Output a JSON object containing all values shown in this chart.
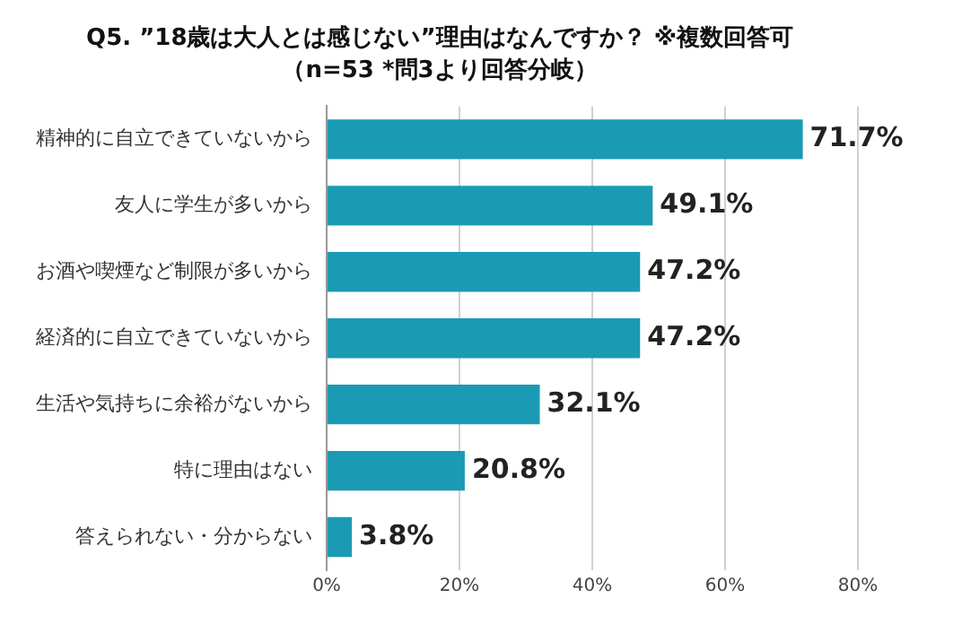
{
  "chart_data": {
    "type": "bar",
    "orientation": "horizontal",
    "title": "Q5. ”18歳は大人とは感じない”理由はなんですか？ ※複数回答可",
    "subtitle": "（n=53 *問3より回答分岐）",
    "categories": [
      "精神的に自立できていないから",
      "友人に学生が多いから",
      "お酒や喫煙など制限が多いから",
      "経済的に自立できていないから",
      "生活や気持ちに余裕がないから",
      "特に理由はない",
      "答えられない・分からない"
    ],
    "values": [
      71.7,
      49.1,
      47.2,
      47.2,
      32.1,
      20.8,
      3.8
    ],
    "value_labels": [
      "71.7%",
      "49.1%",
      "47.2%",
      "47.2%",
      "32.1%",
      "20.8%",
      "3.8%"
    ],
    "color": "#1a9bb3",
    "xlim": [
      0,
      80
    ],
    "xticks": [
      {
        "value": 0,
        "label": "0%"
      },
      {
        "value": 20,
        "label": "20%"
      },
      {
        "value": 40,
        "label": "40%"
      },
      {
        "value": 60,
        "label": "60%"
      },
      {
        "value": 80,
        "label": "80%"
      }
    ],
    "grid": "x",
    "legend": false
  }
}
